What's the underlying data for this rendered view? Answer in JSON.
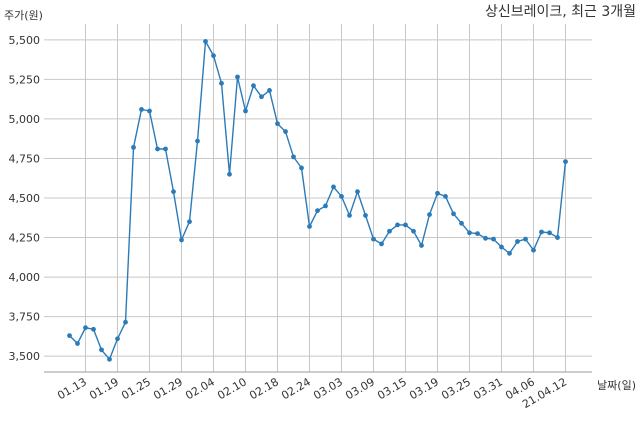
{
  "chart_data": {
    "type": "line",
    "title": "상신브레이크, 최근 3개월",
    "ylabel": "주가(원)",
    "xlabel": "날짜(일)",
    "ylim": [
      3400,
      5600
    ],
    "yticks": [
      3500,
      3750,
      4000,
      4250,
      4500,
      4750,
      5000,
      5250,
      5500
    ],
    "ytick_labels": [
      "3,500",
      "3,750",
      "4,000",
      "4,250",
      "4,500",
      "4,750",
      "5,000",
      "5,250",
      "5,500"
    ],
    "xtick_labels": [
      "01.13",
      "01.19",
      "01.25",
      "01.29",
      "02.04",
      "02.10",
      "02.18",
      "02.24",
      "03.03",
      "03.09",
      "03.15",
      "03.19",
      "03.25",
      "03.31",
      "04.06",
      "21.04.12"
    ],
    "xtick_index": [
      2,
      6,
      10,
      14,
      18,
      22,
      26,
      30,
      34,
      38,
      42,
      46,
      50,
      54,
      58,
      62
    ],
    "grid": true,
    "legend": "none",
    "line_color": "#2b7bb9",
    "series": [
      {
        "values": [
          3630,
          3580,
          3680,
          3670,
          3540,
          3480,
          3610,
          3715,
          4820,
          5060,
          5050,
          4810,
          4810,
          4540,
          4235,
          4350,
          4860,
          5490,
          5400,
          5225,
          4650,
          5265,
          5050,
          5210,
          5140,
          5180,
          4970,
          4920,
          4760,
          4690,
          4320,
          4420,
          4450,
          4570,
          4510,
          4390,
          4540,
          4390,
          4240,
          4210,
          4290,
          4330,
          4330,
          4290,
          4200,
          4395,
          4530,
          4510,
          4400,
          4340,
          4280,
          4275,
          4245,
          4240,
          4190,
          4150,
          4225,
          4240,
          4170,
          4285,
          4280,
          4250,
          4730
        ]
      }
    ]
  }
}
